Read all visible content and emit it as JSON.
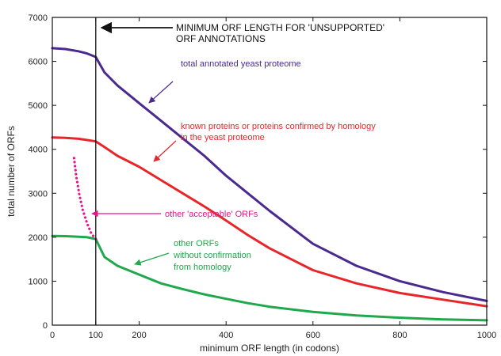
{
  "chart_data": {
    "type": "line",
    "xlabel": "minimum ORF length (in codons)",
    "ylabel": "total number of ORFs",
    "xlim": [
      0,
      1000
    ],
    "ylim": [
      0,
      7000
    ],
    "x_ticks": [
      0,
      100,
      200,
      400,
      600,
      800,
      1000
    ],
    "y_ticks": [
      0,
      1000,
      2000,
      3000,
      4000,
      5000,
      6000,
      7000
    ],
    "grid": false,
    "vline": {
      "x": 100
    },
    "series": [
      {
        "name": "total annotated yeast proteome",
        "color": "#4b2a8f",
        "x": [
          0,
          30,
          60,
          80,
          100,
          120,
          150,
          200,
          250,
          300,
          350,
          400,
          450,
          500,
          600,
          700,
          800,
          900,
          1000
        ],
        "y": [
          6300,
          6280,
          6230,
          6180,
          6100,
          5750,
          5450,
          5050,
          4650,
          4250,
          3850,
          3400,
          3000,
          2600,
          1850,
          1350,
          1000,
          750,
          550
        ]
      },
      {
        "name": "known proteins or proteins confirmed by homology in the yeast proteome",
        "color": "#e8262a",
        "x": [
          0,
          30,
          60,
          80,
          100,
          120,
          150,
          200,
          250,
          300,
          350,
          400,
          450,
          500,
          600,
          700,
          800,
          900,
          1000
        ],
        "y": [
          4270,
          4260,
          4240,
          4210,
          4180,
          4050,
          3850,
          3600,
          3300,
          3000,
          2700,
          2380,
          2050,
          1750,
          1250,
          950,
          730,
          580,
          430
        ]
      },
      {
        "name": "other ORFs without confirmation from homology",
        "color": "#1fa84c",
        "x": [
          0,
          30,
          60,
          80,
          100,
          120,
          150,
          200,
          250,
          300,
          350,
          400,
          450,
          500,
          600,
          700,
          800,
          900,
          1000
        ],
        "y": [
          2030,
          2025,
          2010,
          2000,
          1960,
          1550,
          1350,
          1150,
          950,
          820,
          700,
          600,
          500,
          420,
          300,
          220,
          170,
          130,
          110
        ]
      },
      {
        "name": "other 'acceptable' ORFs",
        "color": "#e8148c",
        "style": "dotted",
        "x": [
          50,
          55,
          62,
          70,
          80,
          90,
          100
        ],
        "y": [
          3800,
          3400,
          2980,
          2620,
          2320,
          2080,
          1960
        ]
      }
    ],
    "annotations": {
      "vline_label_line1": "MINIMUM ORF LENGTH FOR 'UNSUPPORTED'",
      "vline_label_line2": "ORF ANNOTATIONS",
      "total_label": "total annotated yeast proteome",
      "known_label_line1": "known proteins or proteins confirmed by homology",
      "known_label_line2": "in the yeast proteome",
      "acceptable_label": "other 'acceptable' ORFs",
      "other_label_line1": "other ORFs",
      "other_label_line2": "without confirmation",
      "other_label_line3": "from homology"
    }
  }
}
